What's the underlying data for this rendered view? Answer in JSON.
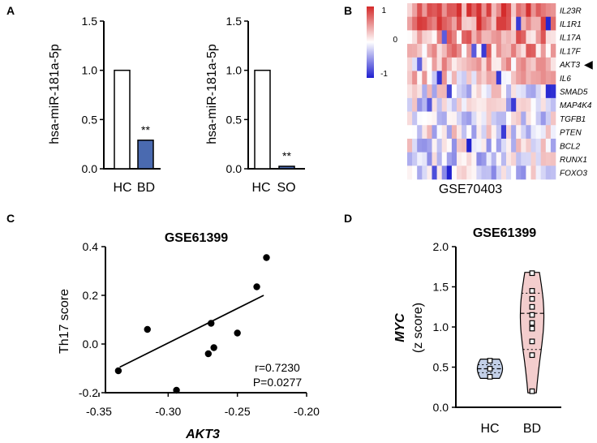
{
  "chart_data": [
    {
      "panel": "A",
      "type": "bar",
      "ylabel": "hsa-miR-181a-5p",
      "ylim": [
        0,
        1.5
      ],
      "yticks": [
        "0.0",
        "0.5",
        "1.0",
        "1.5"
      ],
      "categories": [
        "HC",
        "BD"
      ],
      "values": [
        1.0,
        0.29
      ],
      "bar_colors": [
        "#ffffff",
        "#4a6ab0"
      ],
      "annotations": [
        "",
        "**"
      ]
    },
    {
      "panel": "A",
      "type": "bar",
      "ylabel": "hsa-miR-181a-5p",
      "ylim": [
        0,
        1.5
      ],
      "yticks": [
        "0.0",
        "0.5",
        "1.0",
        "1.5"
      ],
      "categories": [
        "HC",
        "SO"
      ],
      "values": [
        1.0,
        0.025
      ],
      "bar_colors": [
        "#ffffff",
        "#4a6ab0"
      ],
      "annotations": [
        "",
        "**"
      ]
    },
    {
      "panel": "B",
      "type": "heatmap",
      "dataset": "GSE70403",
      "colorbar": {
        "max": "1",
        "mid": "0",
        "min": "-1",
        "max_color": "#d42a2a",
        "mid_color": "#ffffff",
        "min_color": "#1f1fd0"
      },
      "rows": [
        "IL23R",
        "IL1R1",
        "IL17A",
        "IL17F",
        "AKT3",
        "IL6",
        "SMAD5",
        "MAP4K4",
        "TGFB1",
        "PTEN",
        "BCL2",
        "RUNX1",
        "FOXO3"
      ],
      "row_bias": [
        0.62,
        0.58,
        0.42,
        0.38,
        0.22,
        0.18,
        -0.05,
        -0.07,
        -0.06,
        -0.04,
        -0.08,
        -0.1,
        -0.12
      ],
      "columns": 30,
      "highlight_row": "AKT3",
      "highlight_marker": "◀"
    },
    {
      "panel": "C",
      "type": "scatter",
      "title": "GSE61399",
      "xlabel": "AKT3",
      "ylabel": "Th17 score",
      "xlim": [
        -0.35,
        -0.2
      ],
      "ylim": [
        -0.2,
        0.4
      ],
      "xticks": [
        "-0.35",
        "-0.30",
        "-0.25",
        "-0.20"
      ],
      "yticks": [
        "-0.2",
        "0.0",
        "0.2",
        "0.4"
      ],
      "x": [
        -0.336,
        -0.315,
        -0.294,
        -0.271,
        -0.269,
        -0.267,
        -0.25,
        -0.236,
        -0.229
      ],
      "y": [
        -0.11,
        0.06,
        -0.19,
        -0.04,
        0.085,
        -0.015,
        0.045,
        0.235,
        0.355
      ],
      "fit_line": {
        "x": [
          -0.335,
          -0.231
        ],
        "y": [
          -0.095,
          0.2
        ]
      },
      "stats": [
        "r=0.7230",
        "P=0.0277"
      ]
    },
    {
      "panel": "D",
      "type": "violin",
      "title": "GSE61399",
      "ylabel_line1": "MYC",
      "ylabel_line2": "(z score)",
      "ylim": [
        0,
        2
      ],
      "yticks": [
        "0.0",
        "0.5",
        "1.0",
        "1.5",
        "2.0"
      ],
      "categories": [
        "HC",
        "BD"
      ],
      "groups": [
        {
          "name": "HC",
          "points": [
            0.38,
            0.48,
            0.58
          ],
          "median": 0.48,
          "q1": 0.43,
          "q3": 0.53,
          "min": 0.36,
          "max": 0.6,
          "fill": "#c3d0e8"
        },
        {
          "name": "BD",
          "points": [
            0.2,
            0.65,
            0.82,
            0.98,
            1.05,
            1.15,
            1.25,
            1.35,
            1.45,
            1.67
          ],
          "median": 1.17,
          "q1": 0.72,
          "q3": 1.42,
          "min": 0.18,
          "max": 1.68,
          "fill": "#f3cdcd"
        }
      ]
    }
  ]
}
